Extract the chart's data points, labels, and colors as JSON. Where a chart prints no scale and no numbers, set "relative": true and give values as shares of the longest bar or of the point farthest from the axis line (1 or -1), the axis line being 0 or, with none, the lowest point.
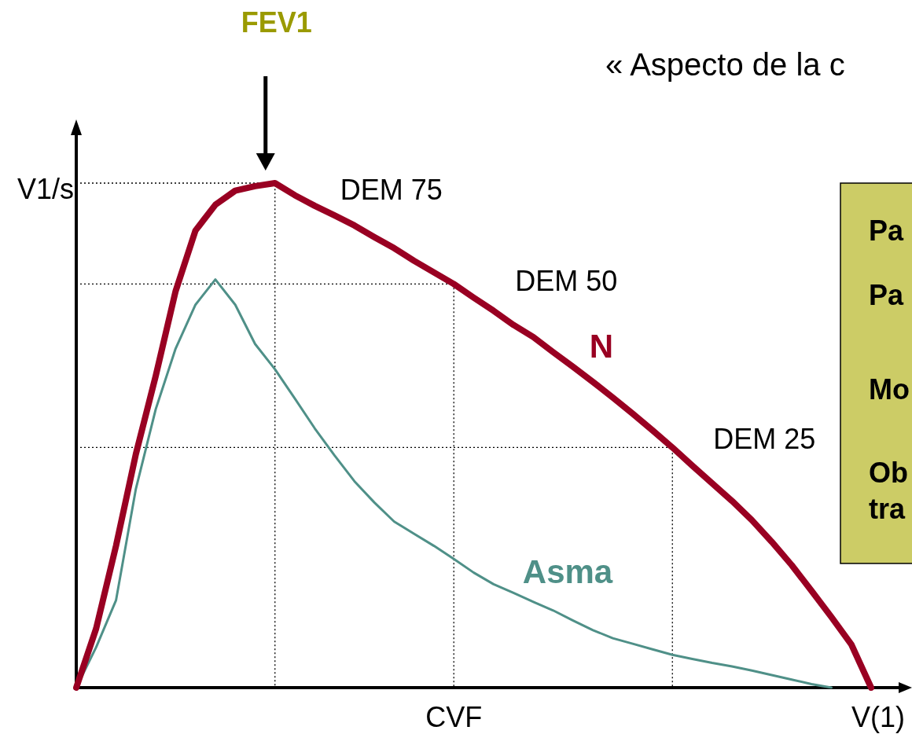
{
  "chart_data": {
    "type": "line",
    "relative": true,
    "title": "« Aspecto de la c",
    "ylabel": "V1/s",
    "xlabel": "V(1)",
    "categories": [
      null,
      null,
      null,
      null,
      null,
      null,
      null,
      null,
      null,
      null,
      null,
      null,
      null,
      null,
      null,
      null,
      null,
      null,
      null,
      null,
      null,
      null,
      null,
      null,
      null,
      null,
      null,
      null,
      null,
      null,
      null,
      null,
      null,
      null,
      null,
      null,
      null,
      null,
      null,
      null,
      null
    ],
    "series": [
      {
        "name": "N",
        "color": "#990022",
        "values": [
          0,
          0.117,
          0.281,
          0.463,
          0.618,
          0.786,
          0.906,
          0.957,
          0.985,
          0.994,
          1,
          0.976,
          0.955,
          0.936,
          0.916,
          0.893,
          0.871,
          0.846,
          0.823,
          0.8,
          0.773,
          0.747,
          0.719,
          0.695,
          0.665,
          0.636,
          0.606,
          0.575,
          0.543,
          0.51,
          0.476,
          0.44,
          0.405,
          0.37,
          0.332,
          0.289,
          0.243,
          0.192,
          0.14,
          0.086,
          0
        ]
      },
      {
        "name": "Asma",
        "color": "#4f9088",
        "values": [
          0,
          0.08,
          0.173,
          0.394,
          0.552,
          0.672,
          0.759,
          0.809,
          0.759,
          0.681,
          0.631,
          0.573,
          0.514,
          0.46,
          0.409,
          0.367,
          0.329,
          0.305,
          0.281,
          0.255,
          0.228,
          0.205,
          0.188,
          0.17,
          0.153,
          0.133,
          0.114,
          0.098,
          0.087,
          0.076,
          0.065,
          0.057,
          0.049,
          0.042,
          0.034,
          0.025,
          0.016,
          0.007,
          0,
          null,
          null
        ]
      }
    ],
    "ref_lines": [
      {
        "axis": "y",
        "value": 1
      },
      {
        "axis": "y",
        "value": 0.8,
        "label": "CVF"
      },
      {
        "axis": "y",
        "value": 0.476
      }
    ],
    "annotations": [
      "FEV1",
      "DEM 75",
      "DEM 50",
      "DEM 25",
      "Pa",
      "Pa",
      "Mo",
      "Ob\ntra"
    ],
    "grid": false,
    "legend": false,
    "marker": "none",
    "line_style": "solid"
  }
}
